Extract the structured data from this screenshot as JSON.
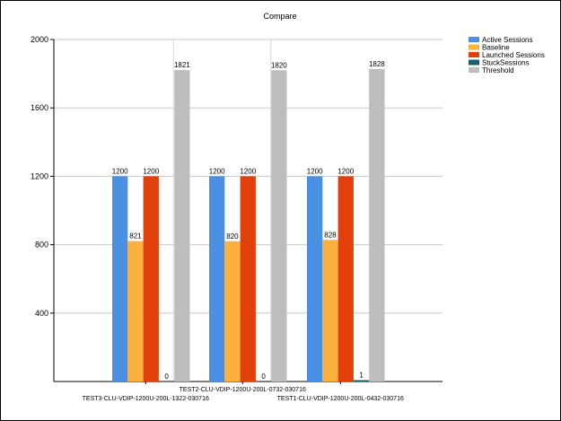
{
  "chart_data": {
    "type": "bar",
    "title": "Compare",
    "categories": [
      "TEST3-CLU-VDIP-1200U-200L-1322-030716",
      "TEST2-CLU-VDIP-1200U-200L-0732-030716",
      "TEST1-CLU-VDIP-1200U-200L-0432-030716"
    ],
    "series": [
      {
        "name": "Active Sessions",
        "color": "#4a90e2",
        "values": [
          1200,
          1200,
          1200
        ]
      },
      {
        "name": "Baseline",
        "color": "#fbb040",
        "values": [
          821,
          820,
          828
        ]
      },
      {
        "name": "Launched Sessions",
        "color": "#e2400b",
        "values": [
          1200,
          1200,
          1200
        ]
      },
      {
        "name": "StuckSessions",
        "color": "#1b5e6b",
        "values": [
          0,
          0,
          1
        ]
      },
      {
        "name": "Threshold",
        "color": "#bdbdbd",
        "values": [
          1821,
          1820,
          1828
        ]
      }
    ],
    "yticks": [
      400,
      800,
      1200,
      1600,
      2000
    ],
    "ylim": [
      0,
      2000
    ],
    "grid": true,
    "legend": "top-right",
    "data_labels": true
  }
}
